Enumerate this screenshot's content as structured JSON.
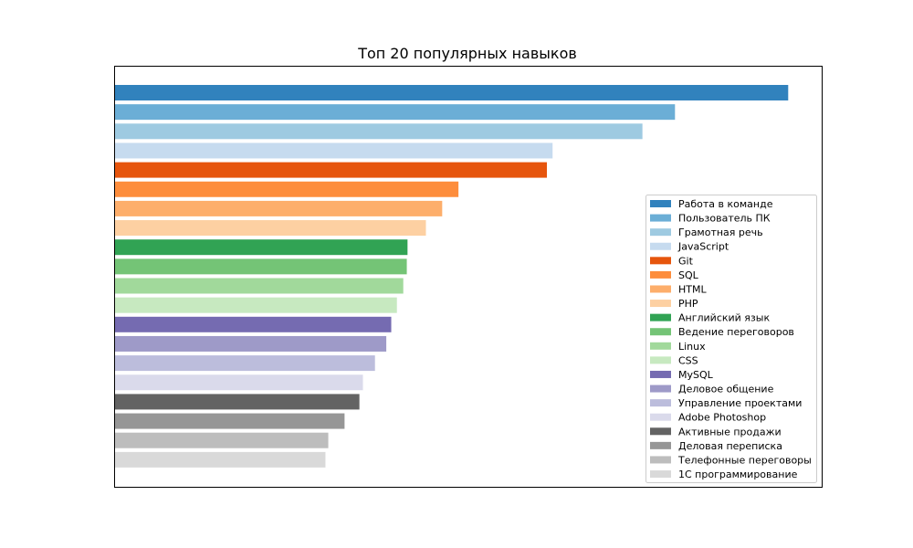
{
  "chart_data": {
    "type": "bar",
    "orientation": "horizontal",
    "title": "Топ 20 популярных навыков",
    "xlabel": "",
    "ylabel": "",
    "axis_ticks_visible": false,
    "grid": false,
    "legend_position": "right",
    "xlim": [
      0,
      1000
    ],
    "categories": [
      "Работа в команде",
      "Пользователь ПК",
      "Грамотная речь",
      "JavaScript",
      "Git",
      "SQL",
      "HTML",
      "PHP",
      "Английский язык",
      "Ведение переговоров",
      "Linux",
      "CSS",
      "MySQL",
      "Деловое общение",
      "Управление проектами",
      "Adobe Photoshop",
      "Активные продажи",
      "Деловая переписка",
      "Телефонные переговоры",
      "1С программирование"
    ],
    "values": [
      952,
      792,
      746,
      619,
      611,
      486,
      463,
      440,
      414,
      413,
      408,
      399,
      391,
      384,
      368,
      351,
      346,
      325,
      302,
      298
    ],
    "colors": [
      "#3182bd",
      "#6baed6",
      "#9ecae1",
      "#c6dbef",
      "#e6550d",
      "#fd8d3c",
      "#fdae6b",
      "#fdd0a2",
      "#31a354",
      "#74c476",
      "#a1d99b",
      "#c7e9c0",
      "#756bb1",
      "#9e9ac8",
      "#bcbddc",
      "#dadaeb",
      "#636363",
      "#969696",
      "#bdbdbd",
      "#d9d9d9"
    ]
  }
}
